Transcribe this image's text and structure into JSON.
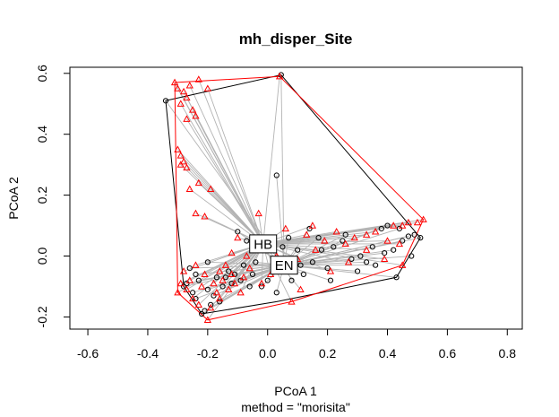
{
  "chart_data": {
    "type": "scatter",
    "title": "mh_disper_Site",
    "xlabel": "PCoA 1",
    "ylabel": "PCoA 2",
    "subtitle": "method = \"morisita\"",
    "xlim": [
      -0.66,
      0.85
    ],
    "ylim": [
      -0.24,
      0.62
    ],
    "xticks": [
      "-0.6",
      "-0.4",
      "-0.2",
      "0.0",
      "0.2",
      "0.4",
      "0.6",
      "0.8"
    ],
    "xtick_values": [
      -0.6,
      -0.4,
      -0.2,
      0.0,
      0.2,
      0.4,
      0.6,
      0.8
    ],
    "yticks": [
      "-0.2",
      "0.0",
      "0.2",
      "0.4",
      "0.6"
    ],
    "ytick_values": [
      -0.2,
      0.0,
      0.2,
      0.4,
      0.6
    ],
    "grid": false,
    "legend": "none",
    "series": [
      {
        "name": "EN",
        "marker": "circle",
        "color": "#000000",
        "centroid": [
          0.055,
          -0.03
        ],
        "hull": [
          [
            -0.34,
            0.51
          ],
          [
            0.045,
            0.595
          ],
          [
            0.51,
            0.06
          ],
          [
            0.43,
            -0.07
          ],
          [
            0.03,
            -0.15
          ],
          [
            -0.22,
            -0.19
          ],
          [
            -0.28,
            -0.1
          ]
        ],
        "points": [
          [
            -0.34,
            0.51
          ],
          [
            0.045,
            0.595
          ],
          [
            0.03,
            0.265
          ],
          [
            0.51,
            0.06
          ],
          [
            0.49,
            0.07
          ],
          [
            0.47,
            0.065
          ],
          [
            0.44,
            0.09
          ],
          [
            0.43,
            -0.07
          ],
          [
            0.48,
            0.0
          ],
          [
            0.45,
            0.05
          ],
          [
            0.42,
            0.02
          ],
          [
            0.4,
            0.1
          ],
          [
            0.38,
            0.09
          ],
          [
            0.35,
            0.03
          ],
          [
            0.33,
            -0.02
          ],
          [
            0.3,
            -0.05
          ],
          [
            0.28,
            -0.01
          ],
          [
            0.25,
            0.05
          ],
          [
            0.22,
            0.03
          ],
          [
            0.2,
            -0.04
          ],
          [
            0.17,
            0.06
          ],
          [
            0.15,
            -0.02
          ],
          [
            0.12,
            -0.06
          ],
          [
            0.1,
            0.02
          ],
          [
            0.08,
            -0.08
          ],
          [
            0.05,
            0.03
          ],
          [
            0.03,
            -0.12
          ],
          [
            0.0,
            -0.08
          ],
          [
            -0.02,
            -0.1
          ],
          [
            -0.05,
            -0.06
          ],
          [
            -0.07,
            0.05
          ],
          [
            -0.09,
            -0.08
          ],
          [
            -0.1,
            0.08
          ],
          [
            -0.12,
            -0.09
          ],
          [
            -0.13,
            -0.05
          ],
          [
            -0.15,
            -0.1
          ],
          [
            -0.17,
            -0.07
          ],
          [
            -0.18,
            -0.13
          ],
          [
            -0.19,
            -0.16
          ],
          [
            -0.2,
            -0.02
          ],
          [
            -0.21,
            -0.18
          ],
          [
            -0.22,
            -0.19
          ],
          [
            -0.23,
            -0.08
          ],
          [
            -0.24,
            -0.14
          ],
          [
            -0.25,
            -0.12
          ],
          [
            -0.26,
            -0.04
          ],
          [
            -0.27,
            -0.09
          ],
          [
            -0.28,
            -0.1
          ],
          [
            -0.14,
            -0.07
          ],
          [
            -0.11,
            -0.06
          ],
          [
            -0.08,
            -0.03
          ],
          [
            -0.06,
            -0.1
          ],
          [
            -0.04,
            -0.02
          ],
          [
            0.14,
            0.09
          ],
          [
            0.18,
            0.02
          ],
          [
            0.26,
            0.07
          ],
          [
            0.31,
            0.0
          ],
          [
            0.36,
            -0.03
          ],
          [
            0.39,
            0.01
          ],
          [
            0.11,
            -0.03
          ],
          [
            0.07,
            0.06
          ],
          [
            0.02,
            -0.05
          ],
          [
            -0.16,
            -0.15
          ],
          [
            -0.2,
            -0.11
          ],
          [
            -0.24,
            -0.06
          ],
          [
            0.21,
            -0.08
          ]
        ]
      },
      {
        "name": "HB",
        "marker": "triangle",
        "color": "#ff0000",
        "centroid": [
          -0.015,
          0.04
        ],
        "hull": [
          [
            -0.31,
            0.57
          ],
          [
            0.04,
            0.59
          ],
          [
            0.52,
            0.12
          ],
          [
            0.45,
            -0.03
          ],
          [
            0.08,
            -0.15
          ],
          [
            -0.2,
            -0.21
          ],
          [
            -0.3,
            -0.12
          ]
        ],
        "points": [
          [
            -0.31,
            0.57
          ],
          [
            -0.3,
            0.55
          ],
          [
            -0.29,
            0.5
          ],
          [
            -0.28,
            0.54
          ],
          [
            -0.27,
            0.52
          ],
          [
            -0.26,
            0.56
          ],
          [
            -0.25,
            0.48
          ],
          [
            -0.24,
            0.46
          ],
          [
            -0.23,
            0.58
          ],
          [
            -0.2,
            0.55
          ],
          [
            -0.27,
            0.45
          ],
          [
            0.04,
            0.59
          ],
          [
            -0.3,
            0.35
          ],
          [
            -0.29,
            0.33
          ],
          [
            -0.28,
            0.31
          ],
          [
            -0.29,
            0.3
          ],
          [
            -0.27,
            0.29
          ],
          [
            -0.26,
            0.22
          ],
          [
            -0.23,
            0.24
          ],
          [
            -0.19,
            0.22
          ],
          [
            -0.24,
            0.14
          ],
          [
            -0.21,
            0.13
          ],
          [
            -0.03,
            0.14
          ],
          [
            0.52,
            0.12
          ],
          [
            0.5,
            0.11
          ],
          [
            0.47,
            0.11
          ],
          [
            0.45,
            0.1
          ],
          [
            0.42,
            0.1
          ],
          [
            0.45,
            -0.03
          ],
          [
            0.4,
            0.05
          ],
          [
            0.36,
            0.08
          ],
          [
            0.33,
            0.07
          ],
          [
            0.29,
            0.06
          ],
          [
            0.26,
            0.04
          ],
          [
            0.23,
            0.08
          ],
          [
            0.19,
            0.05
          ],
          [
            0.16,
            0.02
          ],
          [
            0.13,
            0.07
          ],
          [
            0.1,
            -0.01
          ],
          [
            0.08,
            -0.15
          ],
          [
            0.06,
            0.09
          ],
          [
            0.03,
            0.0
          ],
          [
            0.01,
            -0.06
          ],
          [
            -0.02,
            -0.09
          ],
          [
            -0.04,
            0.02
          ],
          [
            -0.06,
            -0.04
          ],
          [
            -0.08,
            -0.07
          ],
          [
            -0.1,
            0.06
          ],
          [
            -0.11,
            -0.09
          ],
          [
            -0.12,
            -0.06
          ],
          [
            -0.13,
            -0.11
          ],
          [
            -0.14,
            -0.03
          ],
          [
            -0.15,
            -0.08
          ],
          [
            -0.16,
            -0.05
          ],
          [
            -0.17,
            -0.12
          ],
          [
            -0.18,
            -0.09
          ],
          [
            -0.19,
            -0.17
          ],
          [
            -0.2,
            -0.21
          ],
          [
            -0.21,
            -0.06
          ],
          [
            -0.22,
            -0.1
          ],
          [
            -0.23,
            -0.16
          ],
          [
            -0.24,
            -0.03
          ],
          [
            -0.25,
            -0.14
          ],
          [
            -0.26,
            -0.08
          ],
          [
            -0.27,
            -0.11
          ],
          [
            -0.28,
            -0.05
          ],
          [
            -0.29,
            -0.09
          ],
          [
            -0.3,
            -0.12
          ],
          [
            0.21,
            -0.05
          ],
          [
            0.27,
            -0.02
          ],
          [
            0.33,
            0.02
          ],
          [
            0.39,
            -0.01
          ],
          [
            0.44,
            0.04
          ],
          [
            0.15,
            0.1
          ],
          [
            0.0,
            0.03
          ],
          [
            -0.07,
            0.0
          ],
          [
            -0.12,
            0.01
          ],
          [
            -0.16,
            -0.14
          ],
          [
            0.11,
            -0.11
          ],
          [
            -0.09,
            -0.12
          ]
        ]
      }
    ],
    "centroid_labels": [
      {
        "text": "HB",
        "x": -0.015,
        "y": 0.04
      },
      {
        "text": "EN",
        "x": 0.055,
        "y": -0.03
      }
    ]
  }
}
